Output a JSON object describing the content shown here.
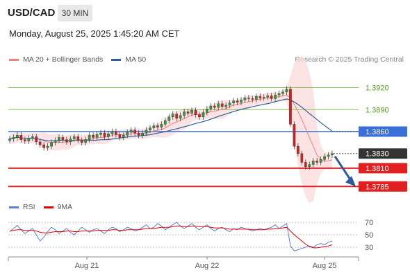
{
  "header": {
    "symbol": "USD/CAD",
    "timeframe": "30 MIN",
    "datetime": "Monday, August 25, 2025 1:45:20 AM CET"
  },
  "legend": {
    "items": [
      {
        "label": "MA 20 + Bollinger Bands",
        "color": "#f08080"
      },
      {
        "label": "MA 50",
        "color": "#2c5f9e"
      }
    ],
    "credit": "Research © 2025 Trading Central"
  },
  "rsi_legend": {
    "items": [
      {
        "label": "RSI",
        "color": "#5b7fd6"
      },
      {
        "label": "9MA",
        "color": "#e00000"
      }
    ]
  },
  "chart_data": [
    {
      "type": "candlestick",
      "ylim": [
        1.3773,
        1.3947
      ],
      "x": [
        "Aug 21",
        "Aug 22",
        "Aug 25"
      ],
      "levels": [
        {
          "value": 1.392,
          "label": "1.3920",
          "role": "resistance",
          "color": "#8fbf5a"
        },
        {
          "value": 1.389,
          "label": "1.3890",
          "role": "resistance",
          "color": "#8fbf5a"
        },
        {
          "value": 1.386,
          "label": "1.3860",
          "role": "pivot",
          "color": "#3b6fd8"
        },
        {
          "value": 1.383,
          "label": "1.3830",
          "role": "last",
          "color": "#333333"
        },
        {
          "value": 1.381,
          "label": "1.3810",
          "role": "support",
          "color": "#e02020"
        },
        {
          "value": 1.3785,
          "label": "1.3785",
          "role": "support",
          "color": "#e02020"
        }
      ],
      "series": [
        {
          "name": "MA 20 + Bollinger Bands",
          "color": "#f08080"
        },
        {
          "name": "MA 50",
          "color": "#2c5f9e"
        }
      ],
      "ohlc_close": [
        1.385,
        1.3852,
        1.3855,
        1.3849,
        1.3847,
        1.3851,
        1.3853,
        1.3846,
        1.3842,
        1.3838,
        1.384,
        1.3845,
        1.3848,
        1.3852,
        1.3849,
        1.3846,
        1.385,
        1.3853,
        1.3848,
        1.3845,
        1.3849,
        1.3855,
        1.3852,
        1.3856,
        1.3858,
        1.3853,
        1.3857,
        1.386,
        1.3856,
        1.3852,
        1.3855,
        1.3859,
        1.3862,
        1.3858,
        1.3855,
        1.3858,
        1.3862,
        1.3865,
        1.3868,
        1.3866,
        1.387,
        1.3875,
        1.388,
        1.3884,
        1.3878,
        1.3882,
        1.3887,
        1.3885,
        1.3889,
        1.3883,
        1.388,
        1.3886,
        1.3891,
        1.3895,
        1.3893,
        1.3898,
        1.3894,
        1.3896,
        1.3899,
        1.3902,
        1.39,
        1.3903,
        1.3906,
        1.3905,
        1.3904,
        1.3908,
        1.3906,
        1.3907,
        1.3909,
        1.3905,
        1.391,
        1.3912,
        1.3914,
        1.3918,
        1.387,
        1.384,
        1.383,
        1.3818,
        1.3812,
        1.3815,
        1.382,
        1.3818,
        1.3822,
        1.3826,
        1.3828,
        1.383
      ]
    },
    {
      "type": "line",
      "title": "RSI",
      "ylim": [
        20,
        80
      ],
      "yticks": [
        30,
        50,
        70
      ],
      "ytick_labels": [
        "30",
        "50",
        "70"
      ],
      "series": [
        {
          "name": "RSI",
          "color": "#5b7fd6"
        },
        {
          "name": "9MA",
          "color": "#e00000"
        }
      ],
      "rsi": [
        55,
        60,
        65,
        58,
        52,
        56,
        60,
        50,
        40,
        46,
        55,
        62,
        58,
        52,
        56,
        60,
        54,
        50,
        56,
        62,
        58,
        54,
        58,
        60,
        56,
        52,
        58,
        62,
        60,
        55,
        58,
        62,
        60,
        56,
        58,
        62,
        66,
        60,
        62,
        68,
        64,
        58,
        62,
        66,
        70,
        64,
        60,
        64,
        68,
        62,
        58,
        62,
        66,
        60,
        56,
        60,
        62,
        58,
        55,
        60,
        58,
        62,
        60,
        58,
        56,
        58,
        60,
        58,
        60,
        62,
        66,
        60,
        64,
        68,
        32,
        24,
        26,
        28,
        30,
        32,
        30,
        34,
        36,
        34,
        38,
        40
      ],
      "ma9": [
        56,
        57,
        58,
        58,
        57,
        57,
        57,
        56,
        54,
        53,
        53,
        54,
        55,
        55,
        55,
        56,
        56,
        55,
        55,
        56,
        56,
        56,
        56,
        57,
        57,
        57,
        57,
        58,
        58,
        57,
        57,
        58,
        58,
        58,
        58,
        59,
        60,
        60,
        60,
        61,
        62,
        62,
        62,
        63,
        64,
        64,
        63,
        63,
        64,
        64,
        63,
        63,
        63,
        62,
        61,
        61,
        61,
        60,
        59,
        59,
        59,
        59,
        59,
        59,
        58,
        58,
        58,
        58,
        59,
        59,
        60,
        60,
        61,
        62,
        56,
        50,
        45,
        40,
        35,
        31,
        29,
        29,
        30,
        31,
        32,
        34
      ]
    }
  ]
}
